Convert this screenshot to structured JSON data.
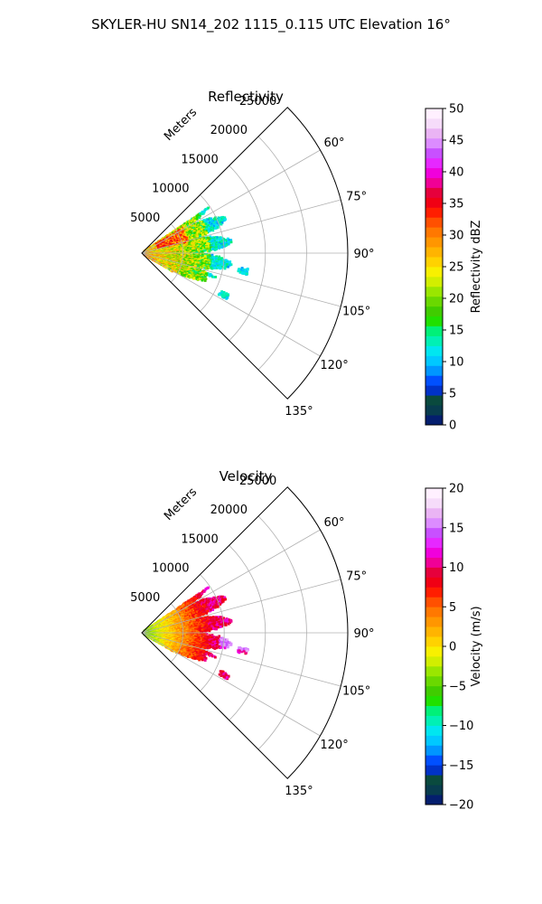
{
  "figure": {
    "suptitle": "SKYLER-HU  SN14_202  1115_0.115 UTC Elevation 16°"
  },
  "chart_data": [
    {
      "type": "polar-sector",
      "title": "Reflectivity",
      "radial_label": "Meters",
      "radial_ticks": [
        5000,
        10000,
        15000,
        20000,
        25000
      ],
      "radial_tick_labels": [
        "5000",
        "10000",
        "15000",
        "20000",
        "25000"
      ],
      "r_range": [
        0,
        25000
      ],
      "theta_range_deg": [
        45,
        135
      ],
      "theta_ticks": [
        60,
        75,
        90,
        105,
        120,
        135
      ],
      "theta_tick_labels": [
        "60°",
        "75°",
        "90°",
        "105°",
        "120°",
        "135°"
      ],
      "grid": true,
      "echo_extent": {
        "main_cluster": {
          "azimuth_deg": [
            56,
            120
          ],
          "range_m": [
            0,
            11000
          ]
        },
        "outlier_cells": [
          {
            "azimuth_deg": 100,
            "range_m": 12500
          },
          {
            "azimuth_deg": 117,
            "range_m": 11200
          }
        ],
        "max_echo_dbz": 35
      },
      "colorbar": {
        "label": "Reflectivity dBZ",
        "range": [
          0,
          50
        ],
        "ticks": [
          0,
          5,
          10,
          15,
          20,
          25,
          30,
          35,
          40,
          45,
          50
        ],
        "tick_labels": [
          "0",
          "5",
          "10",
          "15",
          "20",
          "25",
          "30",
          "35",
          "40",
          "45",
          "50"
        ],
        "colors": [
          "#041e6e",
          "#083c4e",
          "#0a4a3e",
          "#0032c8",
          "#0050ff",
          "#0096ff",
          "#00c8ff",
          "#00e6f0",
          "#00f0b4",
          "#00f078",
          "#20e000",
          "#40cc00",
          "#6ad800",
          "#9ae600",
          "#d2ee00",
          "#f8f000",
          "#ffd200",
          "#ffb400",
          "#ff9600",
          "#ff7800",
          "#ff5000",
          "#ff1e00",
          "#f00014",
          "#e6003c",
          "#f00096",
          "#f000dc",
          "#e628ff",
          "#c850ff",
          "#dc8cff",
          "#eab4f4",
          "#f6dcfa",
          "#fff0ff"
        ]
      }
    },
    {
      "type": "polar-sector",
      "title": "Velocity",
      "radial_label": "Meters",
      "radial_ticks": [
        5000,
        10000,
        15000,
        20000,
        25000
      ],
      "radial_tick_labels": [
        "5000",
        "10000",
        "15000",
        "20000",
        "25000"
      ],
      "r_range": [
        0,
        25000
      ],
      "theta_range_deg": [
        45,
        135
      ],
      "theta_ticks": [
        60,
        75,
        90,
        105,
        120,
        135
      ],
      "theta_tick_labels": [
        "60°",
        "75°",
        "90°",
        "105°",
        "120°",
        "135°"
      ],
      "grid": true,
      "echo_extent": {
        "main_cluster": {
          "azimuth_deg": [
            56,
            120
          ],
          "range_m": [
            0,
            11000
          ]
        },
        "outlier_cells": [
          {
            "azimuth_deg": 100,
            "range_m": 12500
          },
          {
            "azimuth_deg": 117,
            "range_m": 11200
          }
        ],
        "near_range_velocity_ms": -5,
        "far_range_velocity_ms": 10
      },
      "colorbar": {
        "label": "Velocity (m/s)",
        "range": [
          -20,
          20
        ],
        "ticks": [
          -20,
          -15,
          -10,
          -5,
          0,
          5,
          10,
          15,
          20
        ],
        "tick_labels": [
          "−20",
          "−15",
          "−10",
          "−5",
          "0",
          "5",
          "10",
          "15",
          "20"
        ],
        "colors": [
          "#041e6e",
          "#083c4e",
          "#0a4a3e",
          "#0032c8",
          "#0050ff",
          "#0096ff",
          "#00c8ff",
          "#00e6f0",
          "#00f0b4",
          "#00f078",
          "#20e000",
          "#40cc00",
          "#6ad800",
          "#9ae600",
          "#d2ee00",
          "#f8f000",
          "#ffd200",
          "#ffb400",
          "#ff9600",
          "#ff7800",
          "#ff5000",
          "#ff1e00",
          "#f00014",
          "#e6003c",
          "#f00096",
          "#f000dc",
          "#e628ff",
          "#c850ff",
          "#dc8cff",
          "#eab4f4",
          "#f6dcfa",
          "#fff0ff"
        ]
      }
    }
  ]
}
